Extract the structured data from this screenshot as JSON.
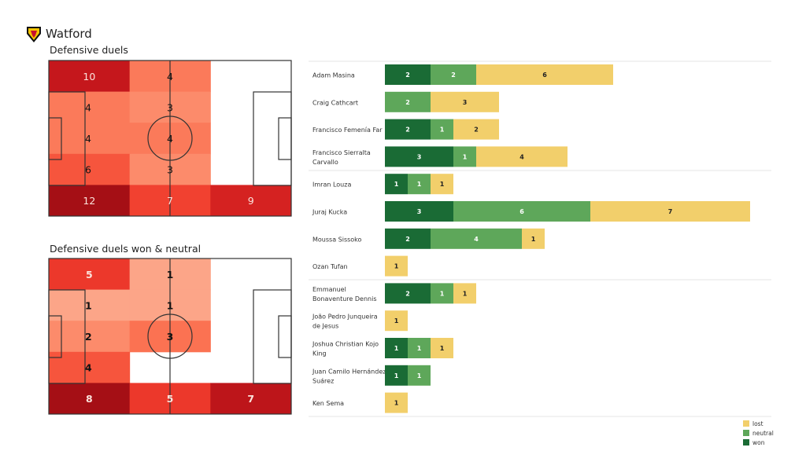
{
  "team": {
    "name": "Watford",
    "logo_icon": "watford-hornet-crest"
  },
  "chart_data": [
    {
      "type": "heatmap",
      "title": "Defensive duels",
      "rows": [
        [
          10,
          4,
          null
        ],
        [
          4,
          3,
          null
        ],
        [
          4,
          4,
          null
        ],
        [
          6,
          3,
          null
        ],
        [
          12,
          7,
          9
        ]
      ],
      "colormap": "Reds"
    },
    {
      "type": "heatmap",
      "title": "Defensive duels won & neutral",
      "rows": [
        [
          5,
          1,
          null
        ],
        [
          1,
          1,
          null
        ],
        [
          2,
          3,
          null
        ],
        [
          4,
          null,
          null
        ],
        [
          8,
          5,
          7
        ]
      ],
      "colormap": "Reds"
    },
    {
      "type": "bar",
      "orientation": "horizontal",
      "stacked": true,
      "legend": {
        "position": "bottom-right",
        "entries": [
          "lost",
          "neutral",
          "won"
        ]
      },
      "colors": {
        "won": "#1a6b35",
        "neutral": "#5ea75a",
        "lost": "#f2cf6b"
      },
      "groups": [
        [
          "Adam Masina",
          "Craig Cathcart",
          "Francisco Femenía Far",
          "Francisco Sierralta Carvallo"
        ],
        [
          "Imran Louza",
          "Juraj Kucka",
          "Moussa Sissoko",
          "Ozan Tufan"
        ],
        [
          "Emmanuel Bonaventure Dennis",
          "João Pedro Junqueira de Jesus",
          "Joshua Christian Kojo King",
          "Juan Camilo Hernández Suárez",
          "Ken Sema"
        ]
      ],
      "players": [
        {
          "name": "Adam Masina",
          "lines": [
            "Adam Masina"
          ],
          "won": 2,
          "neutral": 2,
          "lost": 6
        },
        {
          "name": "Craig Cathcart",
          "lines": [
            "Craig Cathcart"
          ],
          "won": 0,
          "neutral": 2,
          "lost": 3
        },
        {
          "name": "Francisco Femenía Far",
          "lines": [
            "Francisco Femenía Far"
          ],
          "won": 2,
          "neutral": 1,
          "lost": 2
        },
        {
          "name": "Francisco Sierralta Carvallo",
          "lines": [
            "Francisco Sierralta",
            "Carvallo"
          ],
          "won": 3,
          "neutral": 1,
          "lost": 4
        },
        {
          "name": "Imran Louza",
          "lines": [
            "Imran Louza"
          ],
          "won": 1,
          "neutral": 1,
          "lost": 1
        },
        {
          "name": "Juraj Kucka",
          "lines": [
            "Juraj Kucka"
          ],
          "won": 3,
          "neutral": 6,
          "lost": 7
        },
        {
          "name": "Moussa Sissoko",
          "lines": [
            "Moussa Sissoko"
          ],
          "won": 2,
          "neutral": 4,
          "lost": 1
        },
        {
          "name": "Ozan Tufan",
          "lines": [
            "Ozan Tufan"
          ],
          "won": 0,
          "neutral": 0,
          "lost": 1
        },
        {
          "name": "Emmanuel Bonaventure Dennis",
          "lines": [
            "Emmanuel",
            "Bonaventure Dennis"
          ],
          "won": 2,
          "neutral": 1,
          "lost": 1
        },
        {
          "name": "João Pedro Junqueira de Jesus",
          "lines": [
            "João Pedro Junqueira",
            "de Jesus"
          ],
          "won": 0,
          "neutral": 0,
          "lost": 1
        },
        {
          "name": "Joshua Christian Kojo King",
          "lines": [
            "Joshua Christian Kojo",
            "King"
          ],
          "won": 1,
          "neutral": 1,
          "lost": 1
        },
        {
          "name": "Juan Camilo Hernández Suárez",
          "lines": [
            "Juan Camilo Hernández",
            "Suárez"
          ],
          "won": 1,
          "neutral": 1,
          "lost": 0
        },
        {
          "name": "Ken Sema",
          "lines": [
            "Ken Sema"
          ],
          "won": 0,
          "neutral": 0,
          "lost": 1
        }
      ]
    }
  ]
}
